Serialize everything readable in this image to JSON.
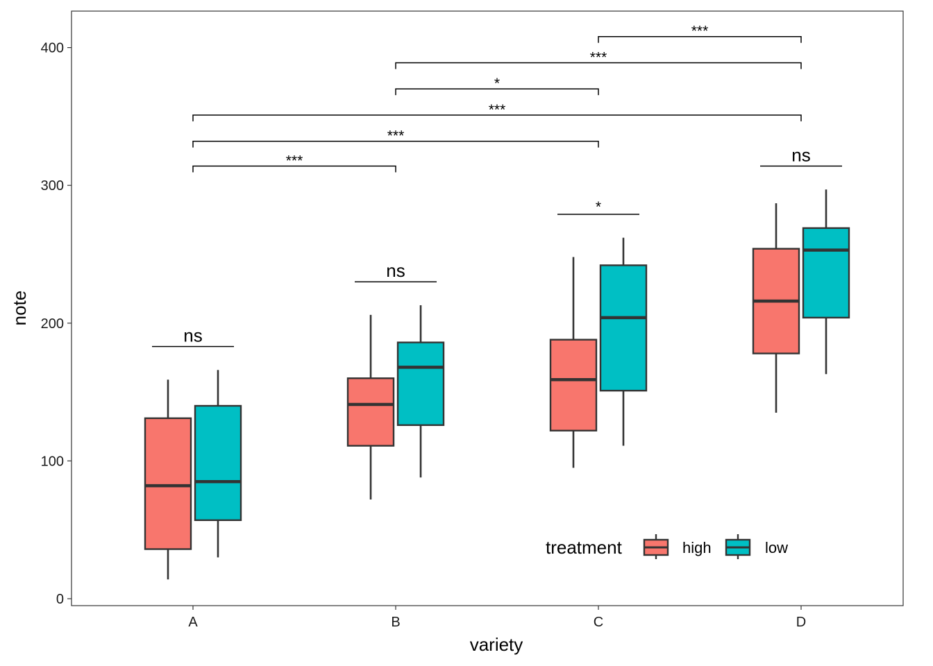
{
  "chart_data": {
    "type": "boxplot",
    "xlabel": "variety",
    "ylabel": "note",
    "ylim": [
      -6,
      426
    ],
    "yticks": [
      0,
      100,
      200,
      300,
      400
    ],
    "categories": [
      "A",
      "B",
      "C",
      "D"
    ],
    "grid": false,
    "legend": {
      "title": "treatment",
      "position": "bottom-right inside",
      "entries": [
        {
          "label": "high",
          "color": "#F8766D"
        },
        {
          "label": "low",
          "color": "#00BFC4"
        }
      ]
    },
    "series": [
      {
        "name": "high",
        "color": "#F8766D",
        "boxes": [
          {
            "category": "A",
            "whisker_low": 14,
            "q1": 36,
            "median": 82,
            "q3": 131,
            "whisker_high": 159
          },
          {
            "category": "B",
            "whisker_low": 72,
            "q1": 111,
            "median": 141,
            "q3": 160,
            "whisker_high": 206
          },
          {
            "category": "C",
            "whisker_low": 95,
            "q1": 122,
            "median": 159,
            "q3": 188,
            "whisker_high": 248
          },
          {
            "category": "D",
            "whisker_low": 135,
            "q1": 178,
            "median": 216,
            "q3": 254,
            "whisker_high": 287
          }
        ]
      },
      {
        "name": "low",
        "color": "#00BFC4",
        "boxes": [
          {
            "category": "A",
            "whisker_low": 30,
            "q1": 57,
            "median": 85,
            "q3": 140,
            "whisker_high": 166
          },
          {
            "category": "B",
            "whisker_low": 88,
            "q1": 126,
            "median": 168,
            "q3": 186,
            "whisker_high": 213
          },
          {
            "category": "C",
            "whisker_low": 111,
            "q1": 151,
            "median": 204,
            "q3": 242,
            "whisker_high": 262
          },
          {
            "category": "D",
            "whisker_low": 163,
            "q1": 204,
            "median": 253,
            "q3": 269,
            "whisker_high": 297
          }
        ]
      }
    ],
    "within_group_annotations": [
      {
        "category": "A",
        "label": "ns",
        "y": 183
      },
      {
        "category": "B",
        "label": "ns",
        "y": 230
      },
      {
        "category": "C",
        "label": "*",
        "y": 279
      },
      {
        "category": "D",
        "label": "ns",
        "y": 314
      }
    ],
    "between_group_annotations": [
      {
        "from": "A",
        "to": "B",
        "label": "***",
        "y": 314
      },
      {
        "from": "A",
        "to": "C",
        "label": "***",
        "y": 332
      },
      {
        "from": "A",
        "to": "D",
        "label": "***",
        "y": 351
      },
      {
        "from": "B",
        "to": "C",
        "label": "*",
        "y": 370
      },
      {
        "from": "B",
        "to": "D",
        "label": "***",
        "y": 389
      },
      {
        "from": "C",
        "to": "D",
        "label": "***",
        "y": 408
      }
    ]
  }
}
